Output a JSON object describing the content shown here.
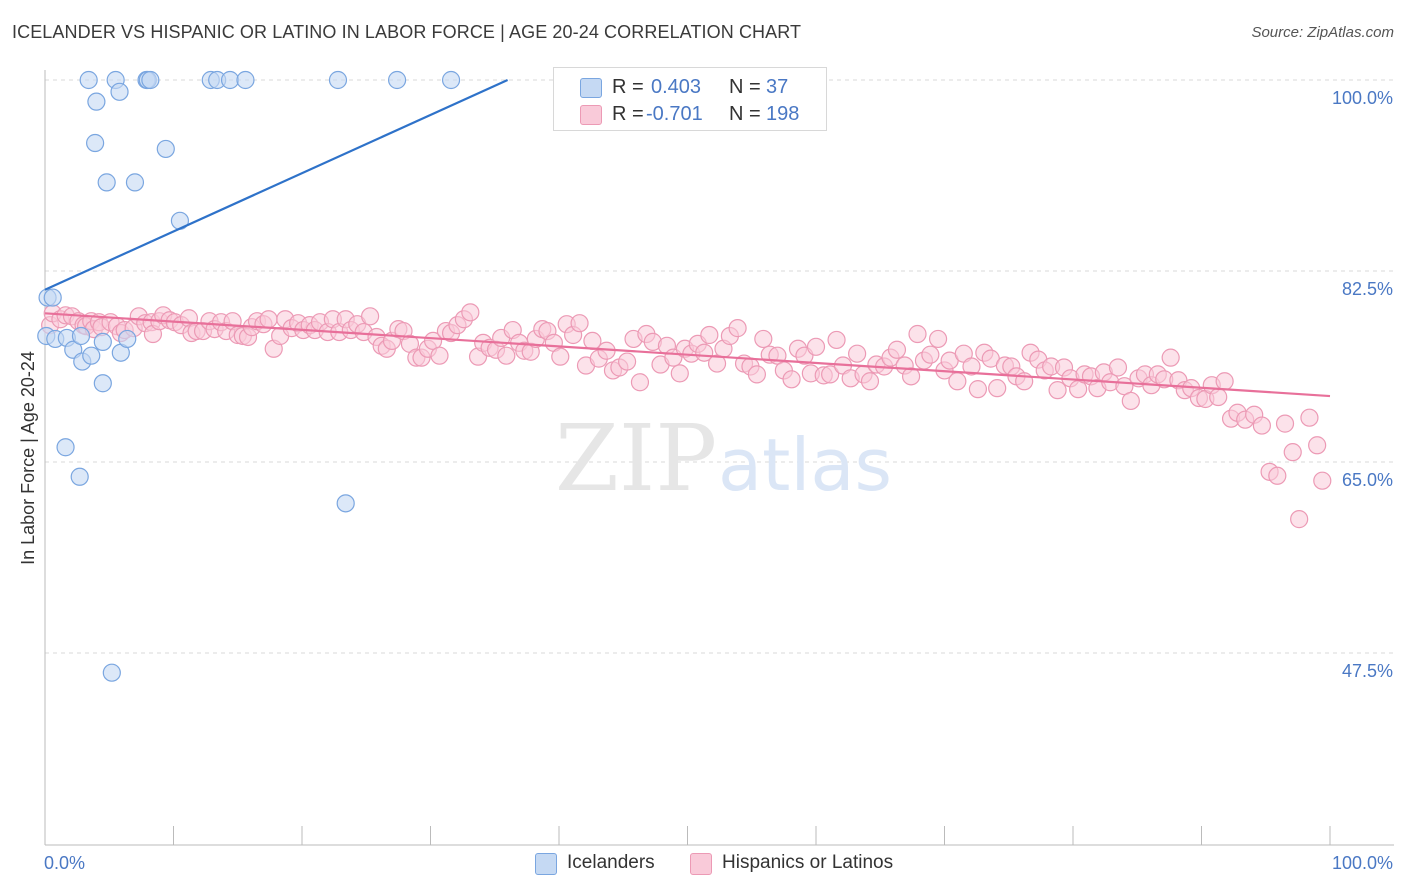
{
  "header": {
    "title": "ICELANDER VS HISPANIC OR LATINO IN LABOR FORCE | AGE 20-24 CORRELATION CHART",
    "source": "Source: ZipAtlas.com"
  },
  "watermark": {
    "zip": "ZIP",
    "atlas": "atlas"
  },
  "legend_top": {
    "rows": [
      {
        "r_label": "R =",
        "r_value": "0.403",
        "n_label": "N =",
        "n_value": "37"
      },
      {
        "r_label": "R =",
        "r_value": "-0.701",
        "n_label": "N =",
        "n_value": "198"
      }
    ]
  },
  "legend_bottom": {
    "items": [
      {
        "label": "Icelanders"
      },
      {
        "label": "Hispanics or Latinos"
      }
    ]
  },
  "colors": {
    "blue_fill": "#c5d9f3",
    "blue_stroke": "#7aa6e0",
    "blue_line": "#2e72c9",
    "pink_fill": "#f9cad9",
    "pink_stroke": "#ec9ab5",
    "pink_line": "#e8709a",
    "grid": "#d9d9d9",
    "tick_text": "#4a78c4"
  },
  "chart_data": {
    "type": "scatter",
    "title": "ICELANDER VS HISPANIC OR LATINO IN LABOR FORCE | AGE 20-24 CORRELATION CHART",
    "ylabel": "In Labor Force | Age 20-24",
    "xlabel": "",
    "xlim": [
      0,
      100
    ],
    "ylim": [
      32,
      100
    ],
    "y_ticks": [
      {
        "value": 100.0,
        "label": "100.0%"
      },
      {
        "value": 82.5,
        "label": "82.5%"
      },
      {
        "value": 65.0,
        "label": "65.0%"
      },
      {
        "value": 47.5,
        "label": "47.5%"
      }
    ],
    "x_tick_labels": [
      "0.0%",
      "100.0%"
    ],
    "grid": true,
    "legend_position": "top-center",
    "series": [
      {
        "name": "Icelanders",
        "R": 0.403,
        "N": 37,
        "trend": {
          "x": [
            0,
            36
          ],
          "y": [
            80.6,
            101.9
          ]
        },
        "points": [
          [
            3.4,
            101.9
          ],
          [
            5.5,
            101.9
          ],
          [
            7.9,
            101.9
          ],
          [
            8.0,
            101.9
          ],
          [
            8.2,
            101.9
          ],
          [
            12.9,
            101.9
          ],
          [
            13.4,
            101.9
          ],
          [
            14.4,
            101.9
          ],
          [
            15.6,
            101.9
          ],
          [
            22.8,
            101.9
          ],
          [
            27.4,
            101.9
          ],
          [
            31.6,
            101.9
          ],
          [
            40.6,
            102.0
          ],
          [
            5.8,
            100.7
          ],
          [
            4.0,
            99.7
          ],
          [
            3.9,
            95.5
          ],
          [
            9.4,
            94.9
          ],
          [
            4.8,
            91.5
          ],
          [
            7.0,
            91.5
          ],
          [
            10.5,
            87.6
          ],
          [
            0.2,
            79.8
          ],
          [
            0.6,
            79.8
          ],
          [
            0.1,
            75.9
          ],
          [
            0.8,
            75.6
          ],
          [
            1.7,
            75.7
          ],
          [
            2.2,
            74.5
          ],
          [
            2.8,
            75.9
          ],
          [
            2.9,
            73.3
          ],
          [
            3.6,
            73.9
          ],
          [
            4.5,
            75.3
          ],
          [
            4.5,
            71.1
          ],
          [
            5.9,
            74.2
          ],
          [
            6.4,
            75.6
          ],
          [
            1.6,
            64.6
          ],
          [
            2.7,
            61.6
          ],
          [
            23.4,
            58.9
          ],
          [
            5.2,
            41.7
          ]
        ]
      },
      {
        "name": "Hispanics or Latinos",
        "R": -0.701,
        "N": 198,
        "trend": {
          "x": [
            0,
            100
          ],
          "y": [
            78.2,
            69.8
          ]
        },
        "points": [
          [
            0.4,
            77.0
          ],
          [
            0.6,
            78.2
          ],
          [
            1.2,
            77.6
          ],
          [
            1.6,
            78.0
          ],
          [
            2.1,
            77.9
          ],
          [
            2.6,
            77.4
          ],
          [
            3.0,
            77.0
          ],
          [
            3.2,
            76.9
          ],
          [
            3.6,
            77.4
          ],
          [
            3.8,
            76.6
          ],
          [
            4.2,
            77.3
          ],
          [
            4.4,
            76.8
          ],
          [
            5.1,
            77.3
          ],
          [
            5.6,
            76.9
          ],
          [
            5.9,
            76.2
          ],
          [
            6.2,
            76.5
          ],
          [
            6.9,
            76.7
          ],
          [
            7.3,
            77.9
          ],
          [
            7.8,
            77.2
          ],
          [
            8.3,
            77.3
          ],
          [
            8.4,
            76.1
          ],
          [
            8.9,
            77.4
          ],
          [
            9.2,
            78.0
          ],
          [
            9.7,
            77.5
          ],
          [
            10.1,
            77.3
          ],
          [
            10.6,
            77.0
          ],
          [
            11.2,
            77.7
          ],
          [
            11.4,
            76.2
          ],
          [
            11.8,
            76.4
          ],
          [
            12.3,
            76.4
          ],
          [
            12.8,
            77.4
          ],
          [
            13.2,
            76.6
          ],
          [
            13.7,
            77.3
          ],
          [
            14.1,
            76.4
          ],
          [
            14.6,
            77.4
          ],
          [
            15.0,
            76.0
          ],
          [
            15.4,
            75.9
          ],
          [
            15.8,
            75.8
          ],
          [
            16.1,
            76.8
          ],
          [
            16.5,
            77.4
          ],
          [
            17.0,
            77.1
          ],
          [
            17.4,
            77.6
          ],
          [
            17.8,
            74.6
          ],
          [
            18.3,
            75.9
          ],
          [
            18.7,
            77.6
          ],
          [
            19.2,
            76.7
          ],
          [
            19.7,
            77.2
          ],
          [
            20.1,
            76.5
          ],
          [
            20.6,
            77.0
          ],
          [
            21.0,
            76.5
          ],
          [
            21.4,
            77.3
          ],
          [
            22.0,
            76.3
          ],
          [
            22.4,
            77.6
          ],
          [
            22.9,
            76.3
          ],
          [
            23.4,
            77.6
          ],
          [
            23.8,
            76.5
          ],
          [
            24.3,
            77.1
          ],
          [
            24.8,
            76.3
          ],
          [
            25.3,
            77.9
          ],
          [
            25.8,
            75.8
          ],
          [
            26.2,
            74.9
          ],
          [
            26.6,
            74.6
          ],
          [
            27.0,
            75.4
          ],
          [
            27.5,
            76.6
          ],
          [
            27.9,
            76.4
          ],
          [
            28.4,
            75.1
          ],
          [
            28.9,
            73.7
          ],
          [
            29.3,
            73.7
          ],
          [
            29.8,
            74.6
          ],
          [
            30.2,
            75.4
          ],
          [
            30.7,
            73.9
          ],
          [
            31.2,
            76.4
          ],
          [
            31.6,
            76.2
          ],
          [
            32.1,
            77.0
          ],
          [
            32.6,
            77.6
          ],
          [
            33.1,
            78.3
          ],
          [
            33.7,
            73.8
          ],
          [
            34.1,
            75.2
          ],
          [
            34.6,
            74.7
          ],
          [
            35.1,
            74.5
          ],
          [
            35.5,
            75.7
          ],
          [
            35.9,
            73.9
          ],
          [
            36.4,
            76.5
          ],
          [
            36.9,
            75.2
          ],
          [
            37.3,
            74.4
          ],
          [
            37.8,
            74.3
          ],
          [
            38.2,
            75.6
          ],
          [
            38.7,
            76.6
          ],
          [
            39.1,
            76.4
          ],
          [
            39.6,
            75.2
          ],
          [
            40.1,
            73.8
          ],
          [
            40.6,
            77.1
          ],
          [
            41.1,
            76.0
          ],
          [
            41.6,
            77.2
          ],
          [
            42.1,
            72.9
          ],
          [
            42.6,
            75.4
          ],
          [
            43.1,
            73.6
          ],
          [
            43.7,
            74.4
          ],
          [
            44.2,
            72.4
          ],
          [
            44.7,
            72.7
          ],
          [
            45.3,
            73.3
          ],
          [
            45.8,
            75.6
          ],
          [
            46.3,
            71.2
          ],
          [
            46.8,
            76.1
          ],
          [
            47.3,
            75.3
          ],
          [
            47.9,
            73.0
          ],
          [
            48.4,
            74.9
          ],
          [
            48.9,
            73.7
          ],
          [
            49.4,
            72.1
          ],
          [
            49.8,
            74.6
          ],
          [
            50.3,
            74.1
          ],
          [
            50.8,
            75.1
          ],
          [
            51.3,
            74.2
          ],
          [
            51.7,
            76.0
          ],
          [
            52.3,
            73.1
          ],
          [
            52.8,
            74.6
          ],
          [
            53.3,
            75.9
          ],
          [
            53.9,
            76.7
          ],
          [
            54.4,
            73.1
          ],
          [
            54.9,
            72.8
          ],
          [
            55.4,
            72.0
          ],
          [
            55.9,
            75.6
          ],
          [
            56.4,
            74.0
          ],
          [
            57.0,
            73.9
          ],
          [
            57.5,
            72.4
          ],
          [
            58.1,
            71.5
          ],
          [
            58.6,
            74.6
          ],
          [
            59.1,
            73.9
          ],
          [
            59.6,
            72.1
          ],
          [
            60.0,
            74.8
          ],
          [
            60.6,
            71.9
          ],
          [
            61.1,
            72.0
          ],
          [
            61.6,
            75.5
          ],
          [
            62.1,
            72.9
          ],
          [
            62.7,
            71.6
          ],
          [
            63.2,
            74.1
          ],
          [
            63.7,
            72.0
          ],
          [
            64.2,
            71.3
          ],
          [
            64.7,
            73.0
          ],
          [
            65.3,
            72.8
          ],
          [
            65.8,
            73.7
          ],
          [
            66.3,
            74.5
          ],
          [
            66.9,
            72.9
          ],
          [
            67.4,
            71.8
          ],
          [
            67.9,
            76.1
          ],
          [
            68.4,
            73.4
          ],
          [
            68.9,
            74.0
          ],
          [
            69.5,
            75.6
          ],
          [
            70.0,
            72.4
          ],
          [
            70.4,
            73.4
          ],
          [
            71.0,
            71.3
          ],
          [
            71.5,
            74.1
          ],
          [
            72.1,
            72.8
          ],
          [
            72.6,
            70.5
          ],
          [
            73.1,
            74.2
          ],
          [
            73.6,
            73.6
          ],
          [
            74.1,
            70.6
          ],
          [
            74.7,
            72.9
          ],
          [
            75.2,
            72.8
          ],
          [
            75.6,
            71.8
          ],
          [
            76.2,
            71.3
          ],
          [
            76.7,
            74.2
          ],
          [
            77.3,
            73.5
          ],
          [
            77.8,
            72.4
          ],
          [
            78.3,
            72.8
          ],
          [
            78.8,
            70.4
          ],
          [
            79.3,
            72.7
          ],
          [
            79.8,
            71.6
          ],
          [
            80.4,
            70.5
          ],
          [
            80.9,
            72.0
          ],
          [
            81.4,
            71.8
          ],
          [
            81.9,
            70.6
          ],
          [
            82.4,
            72.2
          ],
          [
            82.9,
            71.2
          ],
          [
            83.5,
            72.7
          ],
          [
            84.0,
            70.8
          ],
          [
            84.5,
            69.3
          ],
          [
            85.1,
            71.6
          ],
          [
            85.6,
            72.0
          ],
          [
            86.1,
            70.9
          ],
          [
            86.6,
            72.0
          ],
          [
            87.1,
            71.5
          ],
          [
            87.6,
            73.7
          ],
          [
            88.2,
            71.4
          ],
          [
            88.7,
            70.4
          ],
          [
            89.2,
            70.6
          ],
          [
            89.8,
            69.6
          ],
          [
            90.3,
            69.5
          ],
          [
            90.8,
            70.9
          ],
          [
            91.3,
            69.7
          ],
          [
            91.8,
            71.3
          ],
          [
            92.3,
            67.5
          ],
          [
            92.8,
            68.1
          ],
          [
            93.4,
            67.4
          ],
          [
            94.1,
            67.9
          ],
          [
            94.7,
            66.8
          ],
          [
            95.3,
            62.1
          ],
          [
            95.9,
            61.7
          ],
          [
            96.5,
            67.0
          ],
          [
            97.1,
            64.1
          ],
          [
            97.6,
            57.3
          ],
          [
            98.4,
            67.6
          ],
          [
            99.0,
            64.8
          ],
          [
            99.4,
            61.2
          ]
        ]
      }
    ]
  }
}
